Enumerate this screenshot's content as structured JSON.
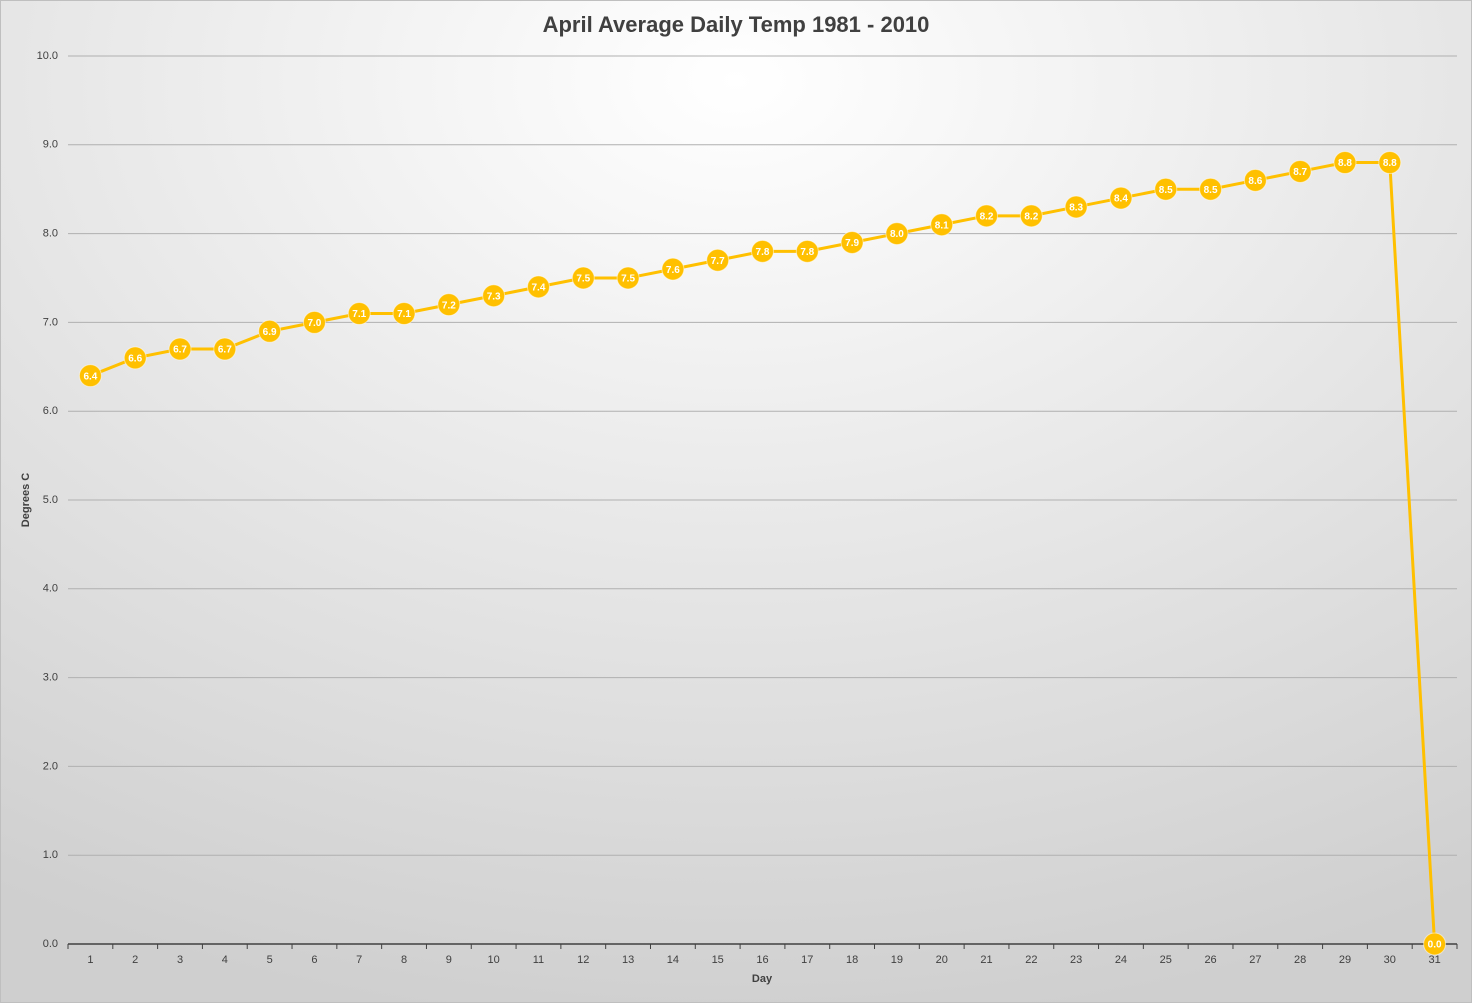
{
  "chart_data": {
    "type": "line",
    "title": "April Average Daily Temp 1981 - 2010",
    "x_label": "Day",
    "y_label": "Degrees C",
    "categories": [
      "1",
      "2",
      "3",
      "4",
      "5",
      "6",
      "7",
      "8",
      "9",
      "10",
      "11",
      "12",
      "13",
      "14",
      "15",
      "16",
      "17",
      "18",
      "19",
      "20",
      "21",
      "22",
      "23",
      "24",
      "25",
      "26",
      "27",
      "28",
      "29",
      "30",
      "31"
    ],
    "series": [
      {
        "color": "#ffc000",
        "values": [
          6.4,
          6.6,
          6.7,
          6.7,
          6.9,
          7.0,
          7.1,
          7.1,
          7.2,
          7.3,
          7.4,
          7.5,
          7.5,
          7.6,
          7.7,
          7.8,
          7.8,
          7.9,
          8.0,
          8.1,
          8.2,
          8.2,
          8.3,
          8.4,
          8.5,
          8.5,
          8.6,
          8.7,
          8.8,
          8.8,
          0.0
        ],
        "value_labels": [
          "6.4",
          "6.6",
          "6.7",
          "6.7",
          "6.9",
          "7.0",
          "7.1",
          "7.1",
          "7.2",
          "7.3",
          "7.4",
          "7.5",
          "7.5",
          "7.6",
          "7.7",
          "7.8",
          "7.8",
          "7.9",
          "8.0",
          "8.1",
          "8.2",
          "8.2",
          "8.3",
          "8.4",
          "8.5",
          "8.5",
          "8.6",
          "8.7",
          "8.8",
          "8.8",
          "0.0"
        ]
      }
    ],
    "ylim": [
      0,
      10
    ],
    "yticks": [
      {
        "value": 0,
        "label": "0.0"
      },
      {
        "value": 1,
        "label": "1.0"
      },
      {
        "value": 2,
        "label": "2.0"
      },
      {
        "value": 3,
        "label": "3.0"
      },
      {
        "value": 4,
        "label": "4.0"
      },
      {
        "value": 5,
        "label": "5.0"
      },
      {
        "value": 6,
        "label": "6.0"
      },
      {
        "value": 7,
        "label": "7.0"
      },
      {
        "value": 8,
        "label": "8.0"
      },
      {
        "value": 9,
        "label": "9.0"
      },
      {
        "value": 10,
        "label": "10.0"
      }
    ],
    "grid": true
  }
}
